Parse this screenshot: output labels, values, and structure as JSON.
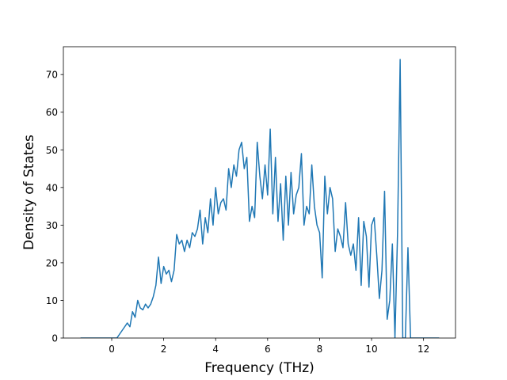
{
  "chart_data": {
    "type": "line",
    "xlabel": "Frequency (THz)",
    "ylabel": "Density of States",
    "x": [
      -1.2,
      -1.1,
      -1.0,
      -0.9,
      -0.8,
      -0.7,
      -0.6,
      -0.5,
      -0.4,
      -0.3,
      -0.2,
      -0.1,
      0.0,
      0.1,
      0.2,
      0.3,
      0.4,
      0.5,
      0.6,
      0.7,
      0.8,
      0.9,
      1.0,
      1.1,
      1.2,
      1.3,
      1.4,
      1.5,
      1.6,
      1.7,
      1.8,
      1.9,
      2.0,
      2.1,
      2.2,
      2.3,
      2.4,
      2.5,
      2.6,
      2.7,
      2.8,
      2.9,
      3.0,
      3.1,
      3.2,
      3.3,
      3.4,
      3.5,
      3.6,
      3.7,
      3.8,
      3.9,
      4.0,
      4.1,
      4.2,
      4.3,
      4.4,
      4.5,
      4.6,
      4.7,
      4.8,
      4.9,
      5.0,
      5.1,
      5.2,
      5.3,
      5.4,
      5.5,
      5.6,
      5.7,
      5.8,
      5.9,
      6.0,
      6.1,
      6.2,
      6.3,
      6.4,
      6.5,
      6.6,
      6.7,
      6.8,
      6.9,
      7.0,
      7.1,
      7.2,
      7.3,
      7.4,
      7.5,
      7.6,
      7.7,
      7.8,
      7.9,
      8.0,
      8.1,
      8.2,
      8.3,
      8.4,
      8.5,
      8.6,
      8.7,
      8.8,
      8.9,
      9.0,
      9.1,
      9.2,
      9.3,
      9.4,
      9.5,
      9.6,
      9.7,
      9.8,
      9.9,
      10.0,
      10.1,
      10.2,
      10.3,
      10.4,
      10.5,
      10.6,
      10.7,
      10.8,
      10.9,
      11.0,
      11.1,
      11.2,
      11.3,
      11.4,
      11.5,
      11.6,
      11.7,
      11.8,
      11.9,
      12.0,
      12.1,
      12.2,
      12.3,
      12.4,
      12.5,
      12.6
    ],
    "values": [
      0,
      0,
      0,
      0,
      0,
      0,
      0,
      0,
      0,
      0,
      0,
      0,
      0,
      0,
      0,
      1,
      2,
      3,
      4,
      3,
      7,
      5.5,
      10,
      8,
      7.5,
      9,
      8,
      9,
      11,
      14,
      21.5,
      14.5,
      19,
      17,
      18,
      15,
      18,
      27.5,
      25,
      26,
      23,
      26,
      24,
      28,
      27,
      29,
      34,
      25,
      32,
      28,
      37,
      30,
      40,
      33,
      36,
      37,
      34,
      45,
      40,
      46,
      43,
      50,
      52,
      45,
      48,
      31,
      35,
      32,
      52,
      43,
      37,
      46,
      38,
      55.5,
      33,
      48,
      31,
      41,
      26,
      43,
      30,
      44,
      33,
      38,
      40,
      49,
      30,
      35,
      33,
      46,
      35,
      30,
      28,
      16,
      43,
      33,
      40,
      37,
      23,
      29,
      27,
      24,
      36,
      25,
      22,
      25,
      18,
      32,
      14,
      31,
      27,
      13.5,
      30,
      32,
      22,
      10.5,
      18,
      39,
      5,
      10,
      25,
      0,
      28,
      74,
      0,
      0,
      24,
      0,
      0,
      0,
      0,
      0,
      0,
      0,
      0,
      0,
      0,
      0,
      0
    ],
    "color": "#1f77b4",
    "xlim": [
      -1.86,
      13.23
    ],
    "ylim": [
      0,
      77.4
    ],
    "xticks": [
      0,
      2,
      4,
      6,
      8,
      10,
      12
    ],
    "yticks": [
      0,
      10,
      20,
      30,
      40,
      50,
      60,
      70
    ]
  }
}
